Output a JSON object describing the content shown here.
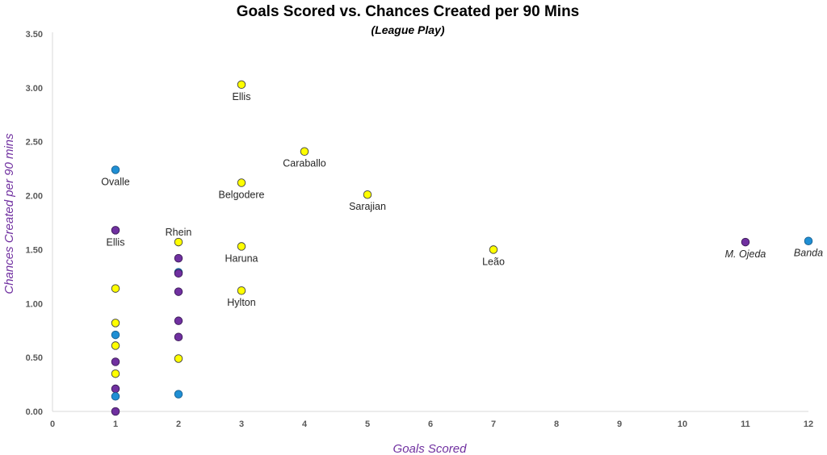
{
  "chart_data": {
    "type": "scatter",
    "title": "Goals Scored vs. Chances Created per 90 Mins",
    "subtitle": "(League Play)",
    "xlabel": "Goals Scored",
    "ylabel": "Chances Created per 90 mins",
    "xlim": [
      0,
      12
    ],
    "ylim": [
      0,
      3.5
    ],
    "x_ticks": [
      "0",
      "1",
      "2",
      "3",
      "4",
      "5",
      "6",
      "7",
      "8",
      "9",
      "10",
      "11",
      "12"
    ],
    "y_ticks": [
      "0.00",
      "0.50",
      "1.00",
      "1.50",
      "2.00",
      "2.50",
      "3.00",
      "3.50"
    ],
    "grid": false,
    "legend": "none",
    "colors": {
      "yellow": "#ffff00",
      "purple": "#7030a0",
      "blue": "#1f8fd4"
    },
    "points": [
      {
        "x": 3,
        "y": 3.03,
        "color": "yellow",
        "label": "Ellis"
      },
      {
        "x": 4,
        "y": 2.41,
        "color": "yellow",
        "label": "Caraballo"
      },
      {
        "x": 3,
        "y": 2.12,
        "color": "yellow",
        "label": "Belgodere"
      },
      {
        "x": 5,
        "y": 2.01,
        "color": "yellow",
        "label": "Sarajian"
      },
      {
        "x": 3,
        "y": 1.53,
        "color": "yellow",
        "label": "Haruna"
      },
      {
        "x": 7,
        "y": 1.5,
        "color": "yellow",
        "label": "Leão"
      },
      {
        "x": 3,
        "y": 1.12,
        "color": "yellow",
        "label": "Hylton"
      },
      {
        "x": 2,
        "y": 1.57,
        "color": "yellow",
        "label": "Rhein"
      },
      {
        "x": 1,
        "y": 2.24,
        "color": "blue",
        "label": "Ovalle"
      },
      {
        "x": 1,
        "y": 1.68,
        "color": "purple",
        "label": "Ellis"
      },
      {
        "x": 11,
        "y": 1.57,
        "color": "purple",
        "label": "M. Ojeda"
      },
      {
        "x": 12,
        "y": 1.58,
        "color": "blue",
        "label": "Banda"
      },
      {
        "x": 1,
        "y": 1.14,
        "color": "yellow"
      },
      {
        "x": 1,
        "y": 0.82,
        "color": "yellow"
      },
      {
        "x": 1,
        "y": 0.71,
        "color": "blue"
      },
      {
        "x": 1,
        "y": 0.61,
        "color": "yellow"
      },
      {
        "x": 1,
        "y": 0.46,
        "color": "purple"
      },
      {
        "x": 1,
        "y": 0.35,
        "color": "yellow"
      },
      {
        "x": 1,
        "y": 0.21,
        "color": "purple"
      },
      {
        "x": 1,
        "y": 0.14,
        "color": "blue"
      },
      {
        "x": 1,
        "y": 0.0,
        "color": "purple"
      },
      {
        "x": 2,
        "y": 1.42,
        "color": "purple"
      },
      {
        "x": 2,
        "y": 1.29,
        "color": "blue"
      },
      {
        "x": 2,
        "y": 1.28,
        "color": "purple"
      },
      {
        "x": 2,
        "y": 1.11,
        "color": "purple"
      },
      {
        "x": 2,
        "y": 0.84,
        "color": "purple"
      },
      {
        "x": 2,
        "y": 0.69,
        "color": "purple"
      },
      {
        "x": 2,
        "y": 0.49,
        "color": "yellow"
      },
      {
        "x": 2,
        "y": 0.16,
        "color": "blue"
      }
    ]
  }
}
